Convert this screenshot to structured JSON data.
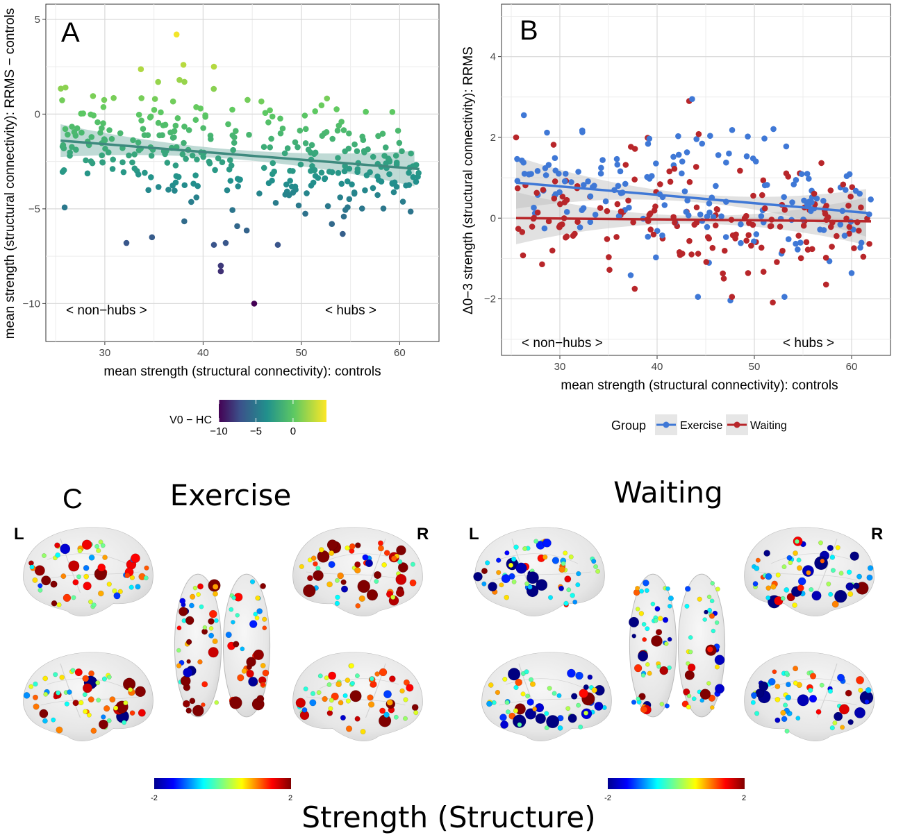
{
  "chart_data": [
    {
      "panel": "A",
      "type": "scatter",
      "xlabel": "mean strength (structural connectivity): controls",
      "ylabel": "mean strength (structural connectivity): RRMS − controls",
      "xlim": [
        24,
        64
      ],
      "ylim": [
        -12,
        5.8
      ],
      "xticks": [
        30,
        40,
        50,
        60
      ],
      "yticks": [
        5,
        0,
        -5,
        -10
      ],
      "ytick_labels": [
        "5",
        "0",
        "−5",
        "−10"
      ],
      "grid": true,
      "fit_line": {
        "x": [
          25.5,
          62
        ],
        "y": [
          -1.4,
          -2.9
        ],
        "color": "#3e8a7e",
        "ci_color": "#a9cec7"
      },
      "annotations": [
        "< non−hubs >",
        "< hubs >"
      ],
      "color_legend": {
        "title": "V0 − HC",
        "ticks": [
          -10,
          -5,
          0
        ],
        "tick_labels": [
          "−10",
          "−5",
          "0"
        ],
        "range": [
          -10,
          4.5
        ],
        "palette": "viridis"
      }
    },
    {
      "panel": "B",
      "type": "scatter",
      "xlabel": "mean strength (structural connectivity): controls",
      "ylabel": "Δ0−3 strength (structural connectivity): RRMS",
      "xlim": [
        24,
        64
      ],
      "ylim": [
        -3.4,
        5.3
      ],
      "xticks": [
        30,
        40,
        50,
        60
      ],
      "yticks": [
        4,
        2,
        0,
        -2
      ],
      "ytick_labels": [
        "4",
        "2",
        "0",
        "−2"
      ],
      "grid": true,
      "annotations": [
        "< non−hubs >",
        "< hubs >"
      ],
      "legend_title": "Group",
      "series": [
        {
          "name": "Exercise",
          "color": "#3f78d6",
          "fit_line": {
            "x": [
              25.5,
              62
            ],
            "y": [
              0.88,
              0.12
            ]
          }
        },
        {
          "name": "Waiting",
          "color": "#b8262a",
          "fit_line": {
            "x": [
              25.5,
              62
            ],
            "y": [
              0.0,
              -0.08
            ]
          }
        }
      ]
    },
    {
      "panel": "C",
      "type": "brain-network",
      "groups": [
        {
          "title": "Exercise",
          "left_label": "L",
          "right_label": "R"
        },
        {
          "title": "Waiting",
          "left_label": "L",
          "right_label": "R"
        }
      ],
      "colorbar": {
        "min_label": "-2",
        "max_label": "2",
        "palette": "jet"
      },
      "caption": "Strength (Structure)"
    }
  ]
}
